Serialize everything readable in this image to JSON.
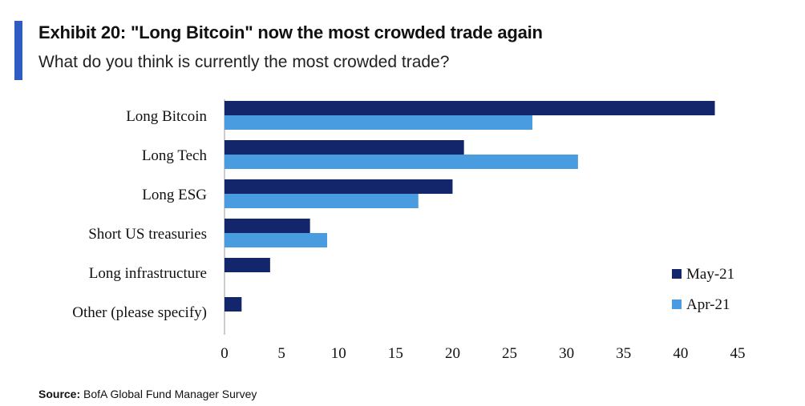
{
  "header": {
    "title": "Exhibit 20: \"Long Bitcoin\" now the most crowded trade again",
    "subtitle": "What do you think is currently the most crowded trade?"
  },
  "footer": {
    "source_label": "Source:",
    "source_text": "BofA Global Fund Manager Survey"
  },
  "colors": {
    "accent": "#2f5cc3",
    "series_may": "#13256b",
    "series_apr": "#4a9ce0"
  },
  "chart_data": {
    "type": "bar",
    "orientation": "horizontal",
    "categories": [
      "Long Bitcoin",
      "Long Tech",
      "Long ESG",
      "Short US treasuries",
      "Long infrastructure",
      "Other (please specify)"
    ],
    "series": [
      {
        "name": "May-21",
        "values": [
          43,
          21,
          20,
          7.5,
          4,
          1.5
        ]
      },
      {
        "name": "Apr-21",
        "values": [
          27,
          31,
          17,
          9,
          null,
          null
        ]
      }
    ],
    "xlim": [
      0,
      45
    ],
    "xticks": [
      0,
      5,
      10,
      15,
      20,
      25,
      30,
      35,
      40,
      45
    ],
    "legend_position": "right",
    "grid": false
  }
}
